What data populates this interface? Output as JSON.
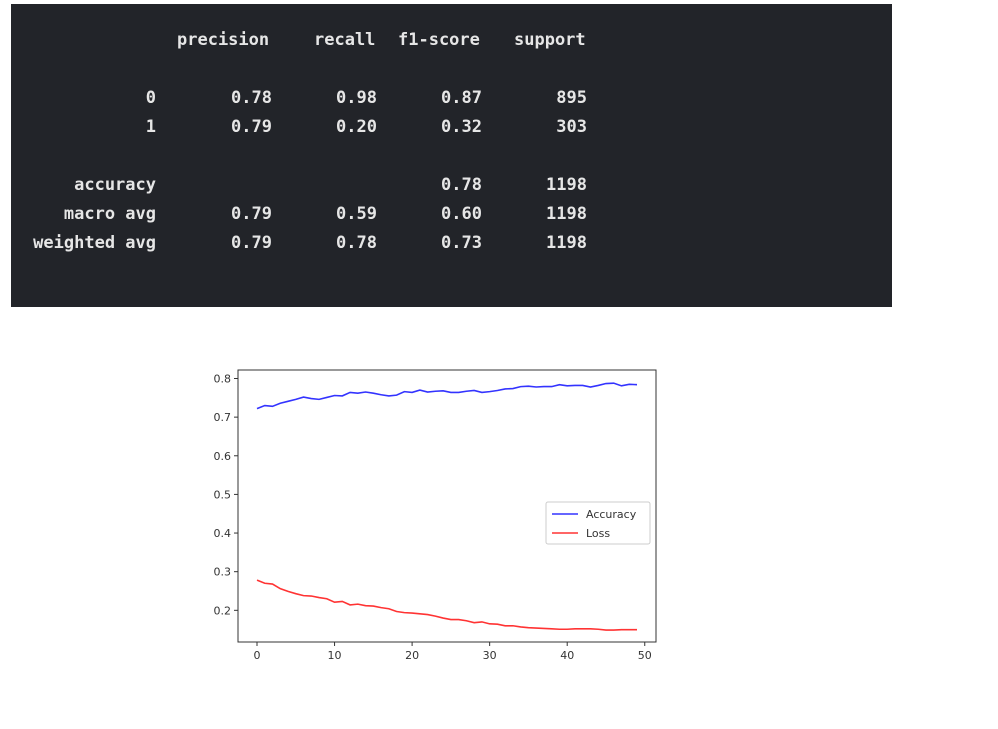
{
  "report": {
    "headers": [
      "precision",
      "recall",
      "f1-score",
      "support"
    ],
    "rows": [
      {
        "label": "0",
        "values": [
          "0.78",
          "0.98",
          "0.87",
          "895"
        ]
      },
      {
        "label": "1",
        "values": [
          "0.79",
          "0.20",
          "0.32",
          "303"
        ]
      },
      {
        "label": "accuracy",
        "values": [
          "",
          "",
          "0.78",
          "1198"
        ]
      },
      {
        "label": "macro avg",
        "values": [
          "0.79",
          "0.59",
          "0.60",
          "1198"
        ]
      },
      {
        "label": "weighted avg",
        "values": [
          "0.79",
          "0.78",
          "0.73",
          "1198"
        ]
      }
    ]
  },
  "chart_data": {
    "type": "line",
    "title": "",
    "xlabel": "",
    "ylabel": "",
    "xlim": [
      -2.45,
      51.45
    ],
    "ylim": [
      0.118,
      0.822
    ],
    "xticks": [
      0,
      10,
      20,
      30,
      40,
      50
    ],
    "yticks": [
      0.2,
      0.3,
      0.4,
      0.5,
      0.6,
      0.7,
      0.8
    ],
    "xticklabels": [
      "0",
      "10",
      "20",
      "30",
      "40",
      "50"
    ],
    "yticklabels": [
      "0.2",
      "0.3",
      "0.4",
      "0.5",
      "0.6",
      "0.7",
      "0.8"
    ],
    "legend_position": "center-right",
    "x": [
      0,
      1,
      2,
      3,
      4,
      5,
      6,
      7,
      8,
      9,
      10,
      11,
      12,
      13,
      14,
      15,
      16,
      17,
      18,
      19,
      20,
      21,
      22,
      23,
      24,
      25,
      26,
      27,
      28,
      29,
      30,
      31,
      32,
      33,
      34,
      35,
      36,
      37,
      38,
      39,
      40,
      41,
      42,
      43,
      44,
      45,
      46,
      47,
      48,
      49
    ],
    "series": [
      {
        "name": "Accuracy",
        "color": "#0000ff",
        "values": [
          0.722,
          0.73,
          0.728,
          0.736,
          0.741,
          0.746,
          0.752,
          0.748,
          0.746,
          0.751,
          0.756,
          0.755,
          0.764,
          0.762,
          0.765,
          0.762,
          0.758,
          0.755,
          0.757,
          0.766,
          0.764,
          0.77,
          0.765,
          0.767,
          0.768,
          0.764,
          0.764,
          0.767,
          0.769,
          0.764,
          0.766,
          0.769,
          0.773,
          0.774,
          0.779,
          0.78,
          0.778,
          0.779,
          0.779,
          0.784,
          0.781,
          0.782,
          0.782,
          0.778,
          0.782,
          0.787,
          0.788,
          0.781,
          0.785,
          0.784
        ]
      },
      {
        "name": "Loss",
        "color": "#ff0000",
        "values": [
          0.278,
          0.27,
          0.268,
          0.256,
          0.249,
          0.243,
          0.238,
          0.237,
          0.233,
          0.23,
          0.221,
          0.223,
          0.214,
          0.216,
          0.212,
          0.211,
          0.207,
          0.204,
          0.197,
          0.194,
          0.193,
          0.191,
          0.189,
          0.185,
          0.18,
          0.176,
          0.176,
          0.173,
          0.168,
          0.17,
          0.165,
          0.164,
          0.16,
          0.16,
          0.157,
          0.155,
          0.154,
          0.153,
          0.152,
          0.151,
          0.151,
          0.152,
          0.152,
          0.152,
          0.151,
          0.149,
          0.149,
          0.15,
          0.15,
          0.15
        ]
      }
    ]
  }
}
